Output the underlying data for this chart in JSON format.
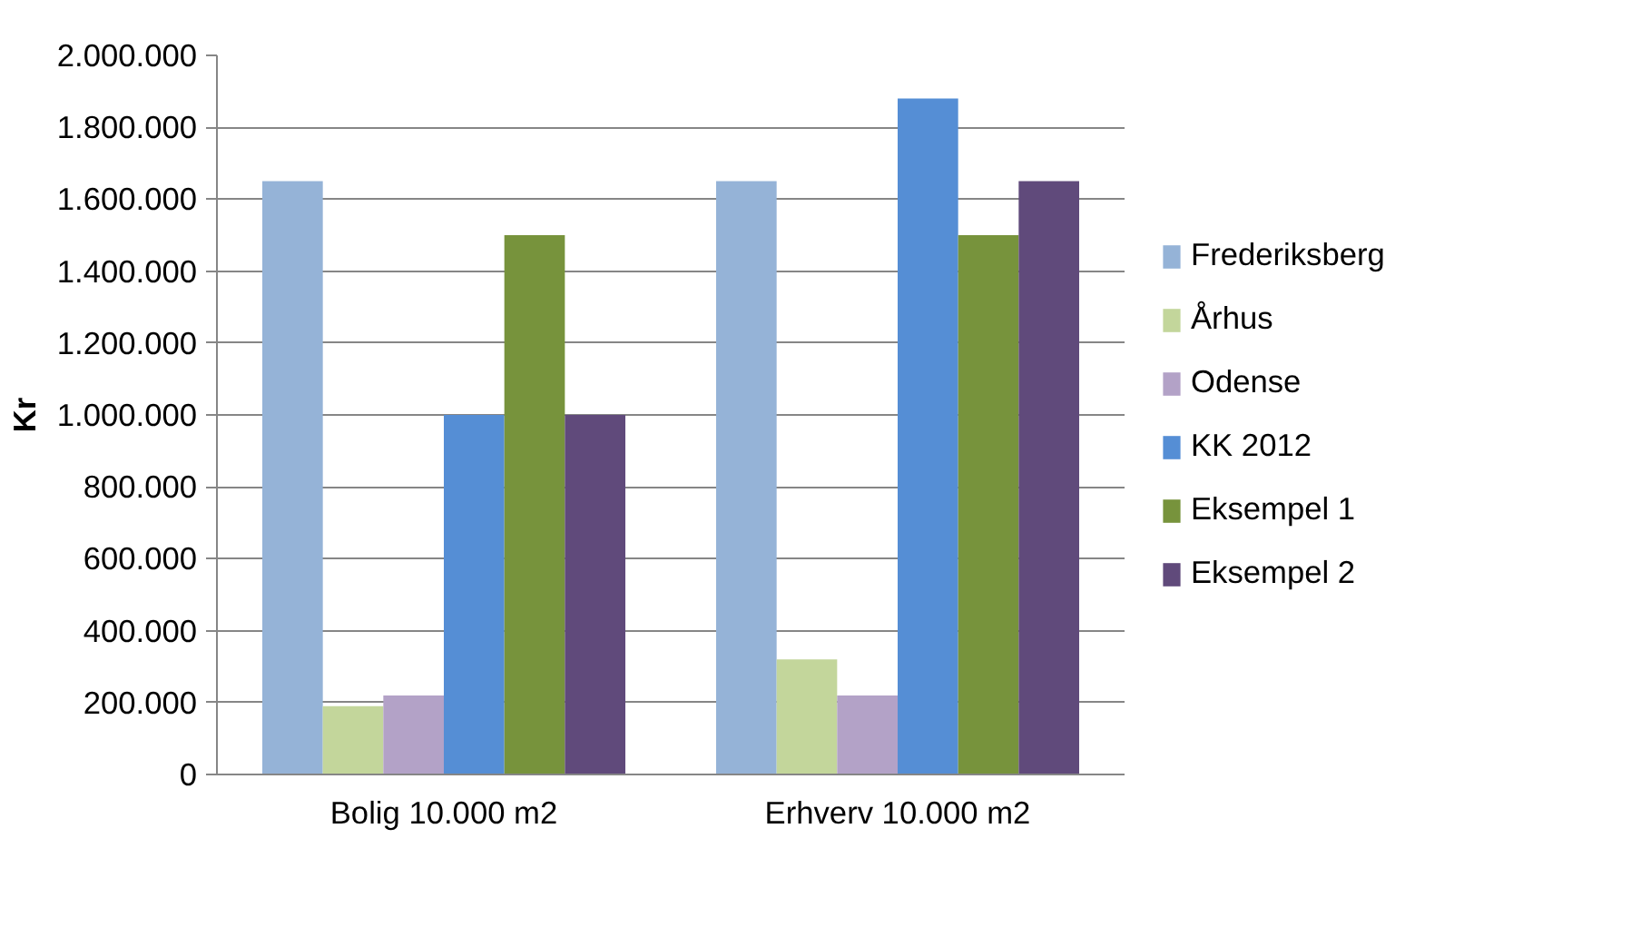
{
  "chart_data": {
    "type": "bar",
    "ylabel": "Kr",
    "categories": [
      "Bolig 10.000 m2",
      "Erhverv 10.000 m2"
    ],
    "series": [
      {
        "name": "Frederiksberg",
        "color": "#95b3d7",
        "values": [
          1650000,
          1650000
        ]
      },
      {
        "name": "Århus",
        "color": "#c3d69b",
        "values": [
          190000,
          320000
        ]
      },
      {
        "name": "Odense",
        "color": "#b3a2c7",
        "values": [
          220000,
          220000
        ]
      },
      {
        "name": "KK 2012",
        "color": "#558ed5",
        "values": [
          1000000,
          1880000
        ]
      },
      {
        "name": "Eksempel 1",
        "color": "#77933c",
        "values": [
          1500000,
          1500000
        ]
      },
      {
        "name": "Eksempel 2",
        "color": "#604a7b",
        "values": [
          1000000,
          1650000
        ]
      }
    ],
    "ylim": [
      0,
      2000000
    ],
    "yticks": [
      0,
      {
        "value": 200000,
        "label": "200.000"
      },
      {
        "value": 400000,
        "label": "400.000"
      },
      {
        "value": 600000,
        "label": "600.000"
      },
      {
        "value": 800000,
        "label": "800.000"
      },
      {
        "value": 1000000,
        "label": "1.000.000"
      },
      {
        "value": 1200000,
        "label": "1.200.000"
      },
      {
        "value": 1400000,
        "label": "1.400.000"
      },
      {
        "value": 1600000,
        "label": "1.600.000"
      },
      {
        "value": 1800000,
        "label": "1.800.000"
      },
      {
        "value": 2000000,
        "label": "2.000.000"
      }
    ],
    "grid": "y",
    "legend": "right"
  }
}
